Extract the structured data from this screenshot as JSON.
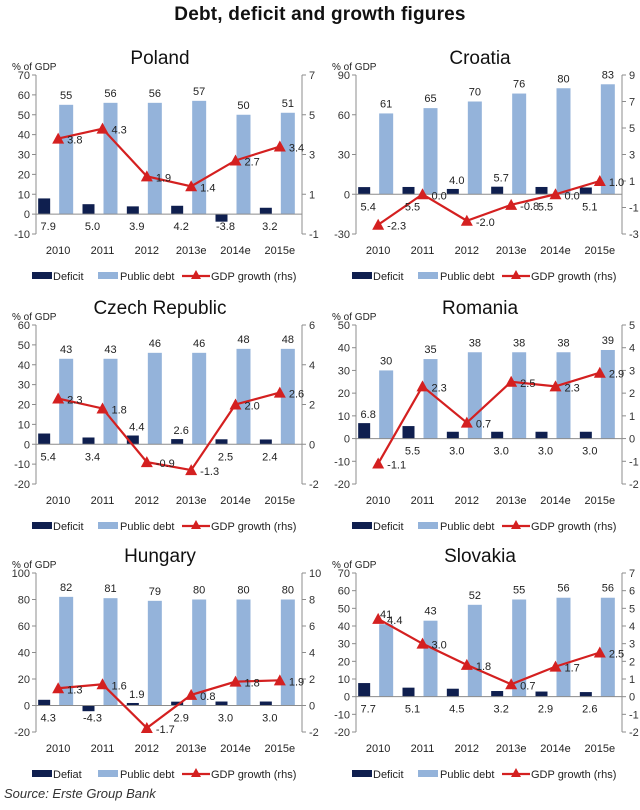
{
  "title": "Debt, deficit and growth figures",
  "source": "Source: Erste Group Bank",
  "colors": {
    "deficit": "#0f1f4f",
    "public_debt": "#94b3da",
    "gdp_growth": "#d42020",
    "axis": "#8c8c8c"
  },
  "chart_data": [
    {
      "type": "bar",
      "title": "Poland",
      "ylabel": "% of GDP",
      "categories": [
        "2010",
        "2011",
        "2012",
        "2013e",
        "2014e",
        "2015e"
      ],
      "ylim": [
        -10,
        70
      ],
      "yticks": [
        -10,
        0,
        10,
        20,
        30,
        40,
        50,
        60,
        70
      ],
      "y2lim": [
        -1,
        7
      ],
      "y2ticks": [
        -1,
        1,
        3,
        5,
        7
      ],
      "legend": [
        "Deficit",
        "Public debt",
        "GDP growth (rhs)"
      ],
      "legend_position": "bottom",
      "series": [
        {
          "name": "Deficit",
          "axis": "left",
          "type": "bar",
          "values": [
            7.9,
            5.0,
            3.9,
            4.2,
            -3.8,
            3.2
          ],
          "labels": [
            "7.9",
            "5.0",
            "3.9",
            "4.2",
            "-3.8",
            "3.2"
          ]
        },
        {
          "name": "Public debt",
          "axis": "left",
          "type": "bar",
          "values": [
            55,
            56,
            56,
            57,
            50,
            51
          ],
          "labels": [
            "55",
            "56",
            "56",
            "57",
            "50",
            "51"
          ]
        },
        {
          "name": "GDP growth (rhs)",
          "axis": "right",
          "type": "line",
          "values": [
            3.8,
            4.3,
            1.9,
            1.4,
            2.7,
            3.4
          ],
          "labels": [
            "3.8",
            "4.3",
            "1.9",
            "1.4",
            "2.7",
            "3.4"
          ]
        }
      ]
    },
    {
      "type": "bar",
      "title": "Croatia",
      "ylabel": "% of GDP",
      "categories": [
        "2010",
        "2011",
        "2012",
        "2013e",
        "2014e",
        "2015e"
      ],
      "ylim": [
        -30,
        90
      ],
      "yticks": [
        -30,
        0,
        30,
        60,
        90
      ],
      "y2lim": [
        -3,
        9
      ],
      "y2ticks": [
        -3,
        -1,
        1,
        3,
        5,
        7,
        9
      ],
      "legend": [
        "Deficit",
        "Public debt",
        "GDP growth (rhs)"
      ],
      "legend_position": "bottom",
      "series": [
        {
          "name": "Deficit",
          "axis": "left",
          "type": "bar",
          "values": [
            5.4,
            5.5,
            4.0,
            5.7,
            5.5,
            5.1
          ],
          "labels": [
            "5.4",
            "5.5",
            "4.0",
            "5.7",
            "5.5",
            "5.1"
          ]
        },
        {
          "name": "Public debt",
          "axis": "left",
          "type": "bar",
          "values": [
            61,
            65,
            70,
            76,
            80,
            83
          ],
          "labels": [
            "61",
            "65",
            "70",
            "76",
            "80",
            "83"
          ]
        },
        {
          "name": "GDP growth (rhs)",
          "axis": "right",
          "type": "line",
          "values": [
            -2.3,
            0.0,
            -2.0,
            -0.8,
            0.0,
            1.0
          ],
          "labels": [
            "-2.3",
            "0.0",
            "-2.0",
            "-0.8",
            "0.0",
            "1.0"
          ]
        }
      ]
    },
    {
      "type": "bar",
      "title": "Czech Republic",
      "ylabel": "% of GDP",
      "categories": [
        "2010",
        "2011",
        "2012",
        "2013e",
        "2014e",
        "2015e"
      ],
      "ylim": [
        -20,
        60
      ],
      "yticks": [
        -20,
        -10,
        0,
        10,
        20,
        30,
        40,
        50,
        60
      ],
      "y2lim": [
        -2,
        6
      ],
      "y2ticks": [
        -2,
        0,
        2,
        4,
        6
      ],
      "legend": [
        "Deficit",
        "Public debt",
        "GDP growth (rhs)"
      ],
      "legend_position": "bottom",
      "series": [
        {
          "name": "Deficit",
          "axis": "left",
          "type": "bar",
          "values": [
            5.4,
            3.4,
            4.4,
            2.6,
            2.5,
            2.4
          ],
          "labels": [
            "5.4",
            "3.4",
            "4.4",
            "2.6",
            "2.5",
            "2.4"
          ]
        },
        {
          "name": "Public debt",
          "axis": "left",
          "type": "bar",
          "values": [
            43,
            43,
            46,
            46,
            48,
            48
          ],
          "labels": [
            "43",
            "43",
            "46",
            "46",
            "48",
            "48"
          ]
        },
        {
          "name": "GDP growth (rhs)",
          "axis": "right",
          "type": "line",
          "values": [
            2.3,
            1.8,
            -0.9,
            -1.3,
            2.0,
            2.6
          ],
          "labels": [
            "2.3",
            "1.8",
            "-0.9",
            "-1.3",
            "2.0",
            "2.6"
          ]
        }
      ]
    },
    {
      "type": "bar",
      "title": "Romania",
      "ylabel": "% of GDP",
      "categories": [
        "2010",
        "2011",
        "2012",
        "2013e",
        "2014e",
        "2015e"
      ],
      "ylim": [
        -20,
        50
      ],
      "yticks": [
        -20,
        -10,
        0,
        10,
        20,
        30,
        40,
        50
      ],
      "y2lim": [
        -2,
        5
      ],
      "y2ticks": [
        -2,
        -1,
        0,
        1,
        2,
        3,
        4,
        5
      ],
      "legend": [
        "Deficit",
        "Public debt",
        "GDP growth (rhs)"
      ],
      "legend_position": "bottom",
      "series": [
        {
          "name": "Deficit",
          "axis": "left",
          "type": "bar",
          "values": [
            6.8,
            5.5,
            3.0,
            3.0,
            3.0,
            3.0
          ],
          "labels": [
            "6.8",
            "5.5",
            "3.0",
            "3.0",
            "3.0",
            "3.0"
          ]
        },
        {
          "name": "Public debt",
          "axis": "left",
          "type": "bar",
          "values": [
            30,
            35,
            38,
            38,
            38,
            39
          ],
          "labels": [
            "30",
            "35",
            "38",
            "38",
            "38",
            "39"
          ]
        },
        {
          "name": "GDP growth (rhs)",
          "axis": "right",
          "type": "line",
          "values": [
            -1.1,
            2.3,
            0.7,
            2.5,
            2.3,
            2.9
          ],
          "labels": [
            "-1.1",
            "2.3",
            "0.7",
            "2.5",
            "2.3",
            "2.9"
          ]
        }
      ]
    },
    {
      "type": "bar",
      "title": "Hungary",
      "ylabel": "% of GDP",
      "categories": [
        "2010",
        "2011",
        "2012",
        "2013e",
        "2014e",
        "2015e"
      ],
      "ylim": [
        -20,
        100
      ],
      "yticks": [
        -20,
        0,
        20,
        40,
        60,
        80,
        100
      ],
      "y2lim": [
        -2,
        10
      ],
      "y2ticks": [
        -2,
        0,
        2,
        4,
        6,
        8,
        10
      ],
      "legend": [
        "Defiat",
        "Public debt",
        "GDP growth (rhs)"
      ],
      "legend_position": "bottom",
      "series": [
        {
          "name": "Deficit",
          "axis": "left",
          "type": "bar",
          "values": [
            4.3,
            -4.3,
            1.9,
            2.9,
            3.0,
            3.0
          ],
          "labels": [
            "4.3",
            "-4.3",
            "1.9",
            "2.9",
            "3.0",
            "3.0"
          ]
        },
        {
          "name": "Public debt",
          "axis": "left",
          "type": "bar",
          "values": [
            82,
            81,
            79,
            80,
            80,
            80
          ],
          "labels": [
            "82",
            "81",
            "79",
            "80",
            "80",
            "80"
          ]
        },
        {
          "name": "GDP growth (rhs)",
          "axis": "right",
          "type": "line",
          "values": [
            1.3,
            1.6,
            -1.7,
            0.8,
            1.8,
            1.9
          ],
          "labels": [
            "1.3",
            "1.6",
            "-1.7",
            "0.8",
            "1.8",
            "1.9"
          ]
        }
      ]
    },
    {
      "type": "bar",
      "title": "Slovakia",
      "ylabel": "% of GDP",
      "categories": [
        "2010",
        "2011",
        "2012",
        "2013e",
        "2014e",
        "2015e"
      ],
      "ylim": [
        -20,
        70
      ],
      "yticks": [
        -20,
        -10,
        0,
        10,
        20,
        30,
        40,
        50,
        60,
        70
      ],
      "y2lim": [
        -2,
        7
      ],
      "y2ticks": [
        -2,
        -1,
        0,
        1,
        2,
        3,
        4,
        5,
        6,
        7
      ],
      "legend": [
        "Deficit",
        "Public debt",
        "GDP growth (rhs)"
      ],
      "legend_position": "bottom",
      "series": [
        {
          "name": "Deficit",
          "axis": "left",
          "type": "bar",
          "values": [
            7.7,
            5.1,
            4.5,
            3.2,
            2.9,
            2.6
          ],
          "labels": [
            "7.7",
            "5.1",
            "4.5",
            "3.2",
            "2.9",
            "2.6"
          ]
        },
        {
          "name": "Public debt",
          "axis": "left",
          "type": "bar",
          "values": [
            41,
            43,
            52,
            55,
            56,
            56
          ],
          "labels": [
            "41",
            "43",
            "52",
            "55",
            "56",
            "56"
          ]
        },
        {
          "name": "GDP growth (rhs)",
          "axis": "right",
          "type": "line",
          "values": [
            4.4,
            3.0,
            1.8,
            0.7,
            1.7,
            2.5
          ],
          "labels": [
            "4.4",
            "3.0",
            "1.8",
            "0.7",
            "1.7",
            "2.5"
          ]
        }
      ]
    }
  ]
}
